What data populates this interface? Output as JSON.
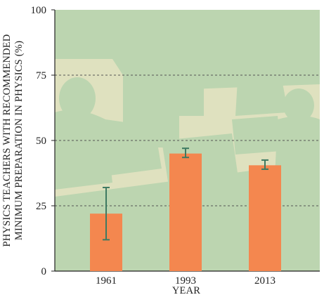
{
  "chart_data": {
    "type": "bar",
    "categories": [
      "1961",
      "1993",
      "2013"
    ],
    "values": [
      22,
      45,
      40.5
    ],
    "error_bars": [
      {
        "low": 12,
        "high": 32
      },
      {
        "low": 43.5,
        "high": 47
      },
      {
        "low": 39,
        "high": 42.5
      }
    ],
    "xlabel": "YEAR",
    "ylabel_lines": [
      "PHYSICS TEACHERS WITH RECOMMENDED",
      "MINIMUM PREPARATION IN PHYSICS (%)"
    ],
    "ylim": [
      0,
      100
    ],
    "yticks": [
      0,
      25,
      50,
      75,
      100
    ],
    "ytick_labels": [
      "0",
      "25",
      "50",
      "75",
      "100"
    ],
    "gridlines": [
      25,
      50,
      75
    ],
    "grid": "dashed horizontal",
    "colors": {
      "bar": "#f4874f",
      "error_bar": "#3e7a62",
      "background": "#dfe1bf",
      "photo_tint": "#b7d4ae",
      "gridline": "#555555"
    }
  }
}
